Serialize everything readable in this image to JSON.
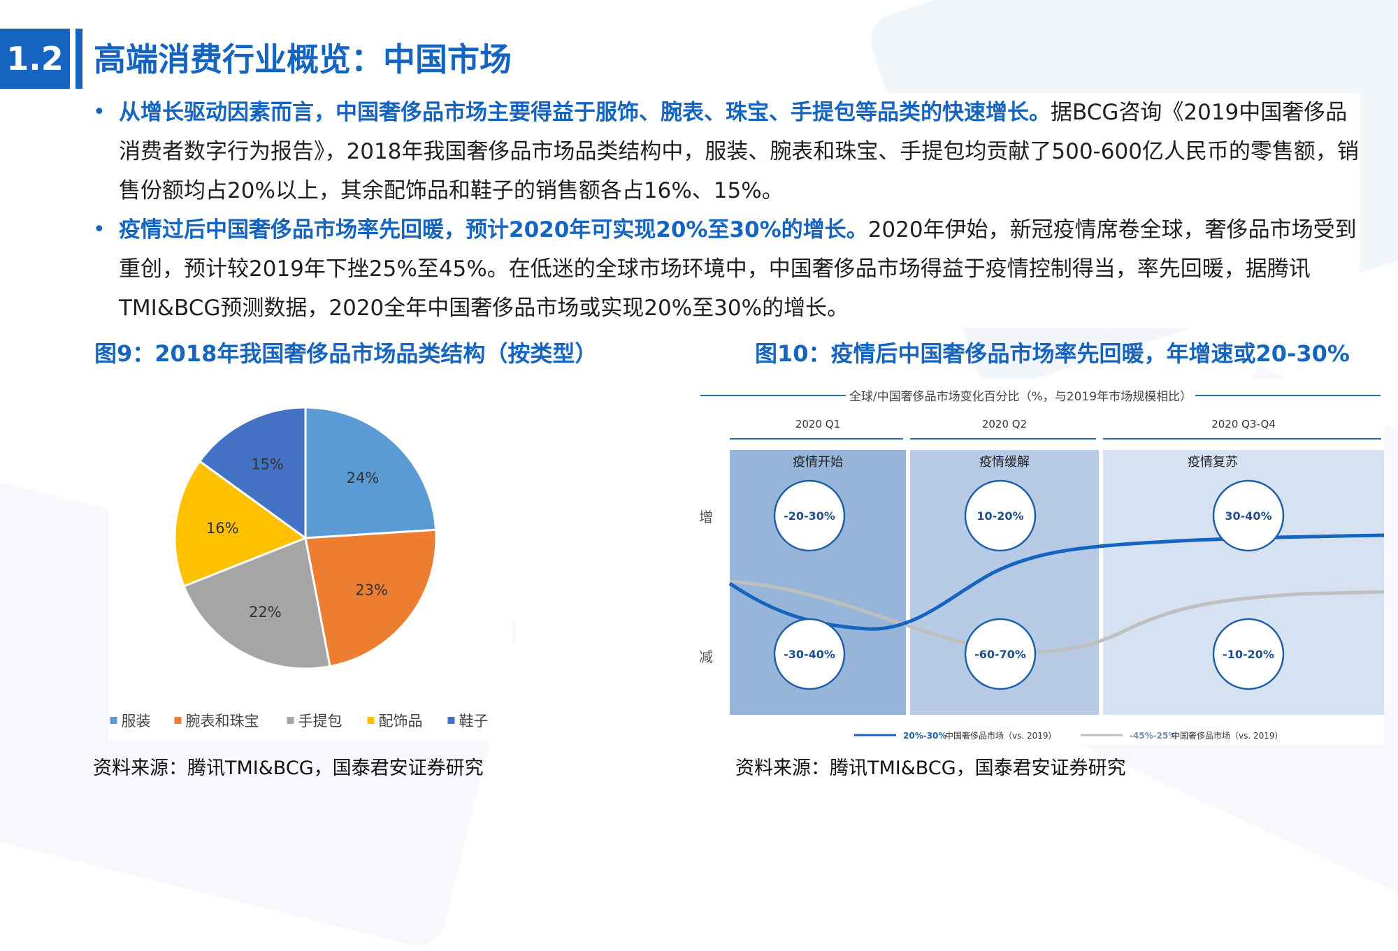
{
  "header": {
    "section_number": "1.2",
    "title": "高端消费行业概览：中国市场"
  },
  "bullets": [
    {
      "highlight": "从增长驱动因素而言，中国奢侈品市场主要得益于服饰、腕表、珠宝、手提包等品类的快速增长。",
      "text": "据BCG咨询《2019中国奢侈品消费者数字行为报告》，2018年我国奢侈品市场品类结构中，服装、腕表和珠宝、手提包均贡献了500-600亿人民币的零售额，销售份额均占20%以上，其余配饰品和鞋子的销售额各占16%、15%。"
    },
    {
      "highlight": "疫情过后中国奢侈品市场率先回暖，预计2020年可实现20%至30%的增长。",
      "text": "2020年伊始，新冠疫情席卷全球，奢侈品市场受到重创，预计较2019年下挫25%至45%。在低迷的全球市场环境中，中国奢侈品市场得益于疫情控制得当，率先回暖，据腾讯TMI&BCG预测数据，2020全年中国奢侈品市场或实现20%至30%的增长。"
    }
  ],
  "figure9": {
    "title": "图9：2018年我国奢侈品市场品类结构（按类型）",
    "source": "资料来源：腾讯TMI&BCG，国泰君安证券研究"
  },
  "figure10": {
    "title": "图10：疫情后中国奢侈品市场率先回暖，年增速或20-30%",
    "source": "资料来源：腾讯TMI&BCG，国泰君安证券研究",
    "header": "全球/中国奢侈品市场变化百分比（%，与2019年市场规模相比）",
    "axis_up": "增",
    "axis_down": "减",
    "periods": [
      {
        "label": "2020 Q1",
        "phase": "疫情开始",
        "up": "-20-30%",
        "down": "-30-40%",
        "fill": "#97b4d9"
      },
      {
        "label": "2020 Q2",
        "phase": "疫情缓解",
        "up": "10-20%",
        "down": "-60-70%",
        "fill": "#b7cbe6"
      },
      {
        "label": "2020 Q3-Q4",
        "phase": "疫情复苏",
        "up": "30-40%",
        "down": "-10-20%",
        "fill": "#d6e2f1"
      }
    ],
    "legend": [
      {
        "range": "20%-30%",
        "name": "中国奢侈品市场（vs. 2019）",
        "color": "#1565c0"
      },
      {
        "range": "-45%-25%",
        "name": "中国奢侈品市场（vs. 2019）",
        "color": "#bfbfbf"
      }
    ]
  },
  "chart_data": {
    "type": "pie",
    "categories": [
      "服装",
      "腕表和珠宝",
      "手提包",
      "配饰品",
      "鞋子"
    ],
    "values": [
      24,
      23,
      22,
      16,
      15
    ],
    "value_labels": [
      "24%",
      "23%",
      "22%",
      "16%",
      "15%"
    ],
    "colors": [
      "#5b9bd5",
      "#ed7d31",
      "#a5a5a5",
      "#ffc000",
      "#4472c4"
    ],
    "legend_position": "bottom"
  }
}
